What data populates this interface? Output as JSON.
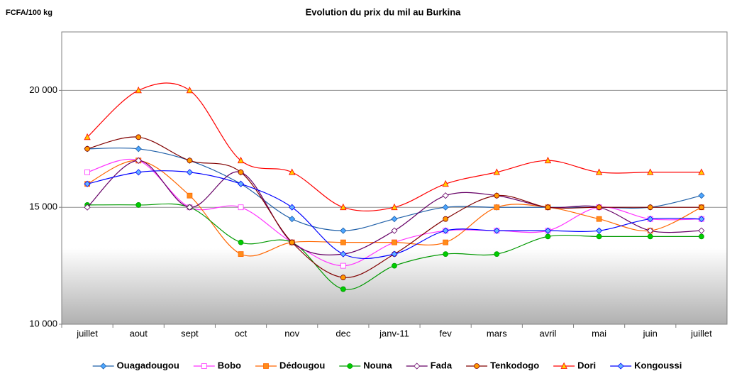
{
  "chart_data": {
    "type": "line",
    "title": "Evolution du prix du mil au Burkina",
    "y_label": "FCFA/100 kg",
    "categories": [
      "juillet",
      "aout",
      "sept",
      "oct",
      "nov",
      "dec",
      "janv-11",
      "fev",
      "mars",
      "avril",
      "mai",
      "juin",
      "juillet"
    ],
    "ylim": [
      10000,
      22500
    ],
    "yticks": [
      {
        "value": 10000,
        "label": "10 000"
      },
      {
        "value": 15000,
        "label": "15 000"
      },
      {
        "value": 20000,
        "label": "20 000"
      }
    ],
    "grid": true,
    "smooth": true,
    "legend": "bottom",
    "series": [
      {
        "name": "Ouagadougou",
        "color": "#1f5fa8",
        "marker": "diamond",
        "marker_fill": "#4da6ff",
        "values": [
          17500,
          17500,
          17000,
          16000,
          14500,
          14000,
          14500,
          15000,
          15000,
          15000,
          15000,
          15000,
          15500
        ]
      },
      {
        "name": "Bobo",
        "color": "#ff33ff",
        "marker": "square",
        "marker_fill": "#ffffff",
        "values": [
          16500,
          17000,
          15000,
          15000,
          13500,
          12500,
          13500,
          14000,
          14000,
          14000,
          15000,
          14500,
          14500
        ]
      },
      {
        "name": "Dédougou",
        "color": "#ff6600",
        "marker": "square",
        "marker_fill": "#ff8c1a",
        "values": [
          16000,
          17000,
          15500,
          13000,
          13500,
          13500,
          13500,
          13500,
          15000,
          15000,
          14500,
          14000,
          15000
        ]
      },
      {
        "name": "Nouna",
        "color": "#009900",
        "marker": "circle",
        "marker_fill": "#00cc00",
        "values": [
          15100,
          15100,
          15000,
          13500,
          13500,
          11500,
          12500,
          13000,
          13000,
          13750,
          13750,
          13750,
          13750
        ]
      },
      {
        "name": "Fada",
        "color": "#660066",
        "marker": "diamond",
        "marker_fill": "#ffffff",
        "values": [
          15000,
          17000,
          15000,
          16500,
          13500,
          13000,
          14000,
          15500,
          15500,
          15000,
          15000,
          14000,
          14000
        ]
      },
      {
        "name": "Tenkodogo",
        "color": "#800000",
        "marker": "circle",
        "marker_fill": "#ff9900",
        "values": [
          17500,
          18000,
          17000,
          16500,
          13500,
          12000,
          13000,
          14500,
          15500,
          15000,
          15000,
          15000,
          15000
        ]
      },
      {
        "name": "Dori",
        "color": "#ff0000",
        "marker": "triangle",
        "marker_fill": "#ffcc00",
        "values": [
          18000,
          20000,
          20000,
          17000,
          16500,
          15000,
          15000,
          16000,
          16500,
          17000,
          16500,
          16500,
          16500
        ]
      },
      {
        "name": "Kongoussi",
        "color": "#0000ff",
        "marker": "diamond",
        "marker_fill": "#66b3ff",
        "values": [
          16000,
          16500,
          16500,
          16000,
          15000,
          13000,
          13000,
          14000,
          14000,
          14000,
          14000,
          14500,
          14500
        ]
      }
    ]
  }
}
